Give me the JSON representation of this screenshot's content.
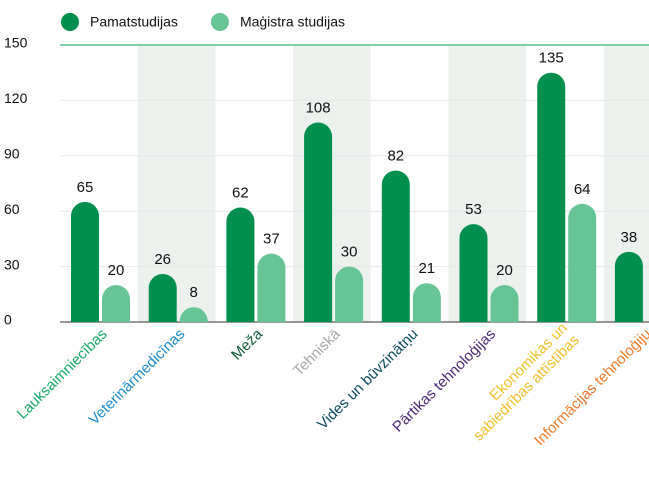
{
  "chart_data": {
    "type": "bar",
    "categories": [
      "Lauksaimniecības",
      "Veterinārmedicīnas",
      "Meža",
      "Tehniskā",
      "Vides un būvzinātņu",
      "Pārtikas tehnoloģijas",
      "Ekonomikas un\nsabiedrības attīstības",
      "Informācijas tehnoloģiju"
    ],
    "category_colors": [
      "#1aa86a",
      "#1f8ccf",
      "#0f5c3a",
      "#a9a9a9",
      "#0b4d5c",
      "#4a2a7a",
      "#f2c12e",
      "#f07a2b"
    ],
    "series": [
      {
        "name": "Pamatstudijas",
        "color": "#008f4c",
        "values": [
          65,
          26,
          62,
          108,
          82,
          53,
          135,
          38
        ]
      },
      {
        "name": "Maģistra studijas",
        "color": "#66c495",
        "values": [
          20,
          8,
          37,
          30,
          21,
          20,
          64,
          null
        ]
      }
    ],
    "ylim": [
      0,
      150
    ],
    "yticks": [
      0,
      30,
      60,
      90,
      120,
      150
    ],
    "grid": true
  }
}
